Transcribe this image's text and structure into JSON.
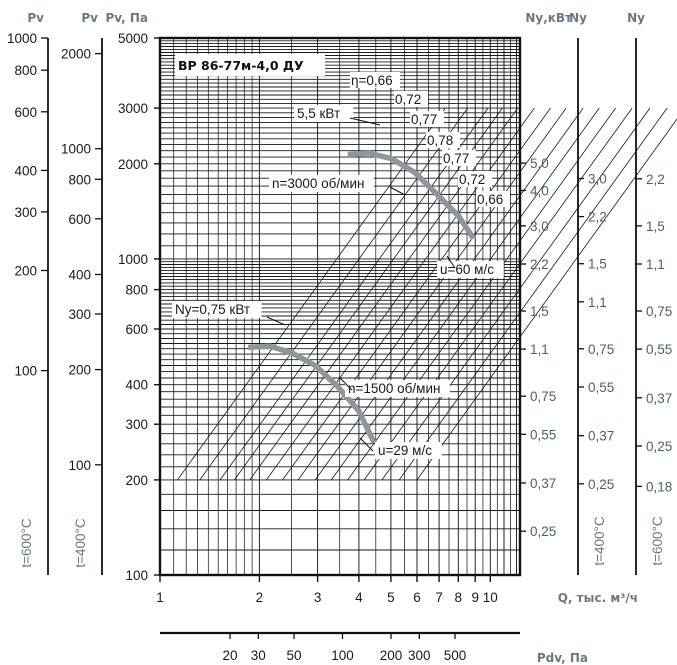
{
  "chart_data": {
    "type": "line",
    "title": "ВР 86-77м-4,0 ДУ",
    "xlabel": "Q, тыс. м³/ч",
    "ylabel": "Pv, Па",
    "x_scale": "log",
    "y_scale": "log",
    "xlim": [
      1,
      12.3
    ],
    "ylim": [
      100,
      5000
    ],
    "x_ticks": [
      "1",
      "2",
      "3",
      "4",
      "5",
      "6",
      "7",
      "8",
      "9",
      "10"
    ],
    "y_ticks": [
      "100",
      "200",
      "300",
      "400",
      "600",
      "800",
      "1000",
      "2000",
      "3000",
      "5000"
    ],
    "dynamic_pressure_axis": {
      "label": "Pdv, Па",
      "ticks": [
        "20",
        "30",
        "50",
        "100",
        "200",
        "300",
        "500"
      ],
      "values": [
        20,
        30,
        50,
        100,
        200,
        300,
        500
      ]
    },
    "left_axes": [
      {
        "label": "Pv",
        "temperature": "t=600°C",
        "ticks": [
          "100",
          "200",
          "300",
          "400",
          "600",
          "800",
          "1000"
        ],
        "values": [
          100,
          200,
          300,
          400,
          600,
          800,
          1000
        ],
        "range": [
          24.3,
          1000
        ]
      },
      {
        "label": "Pv",
        "temperature": "t=400°C",
        "ticks": [
          "100",
          "200",
          "300",
          "400",
          "600",
          "800",
          "1000",
          "2000"
        ],
        "values": [
          100,
          200,
          300,
          400,
          600,
          800,
          1000,
          2000
        ],
        "range": [
          44.8,
          2240
        ]
      }
    ],
    "power_axes": [
      {
        "label": "Nу,кВт",
        "temperature": "",
        "ticks": [
          "0,25",
          "0,37",
          "0,55",
          "0,75",
          "1,1",
          "1,5",
          "2,2",
          "3,0",
          "4,0",
          "5,0"
        ],
        "values": [
          0.25,
          0.37,
          0.55,
          0.75,
          1.1,
          1.5,
          2.2,
          3.0,
          4.0,
          5.0
        ]
      },
      {
        "label": "Nу",
        "temperature": "t=400°C",
        "ticks": [
          "0,25",
          "0,37",
          "0,55",
          "0,75",
          "1,1",
          "1,5",
          "2,2",
          "3,0"
        ],
        "values": [
          0.25,
          0.37,
          0.55,
          0.75,
          1.1,
          1.5,
          2.2,
          3.0
        ]
      },
      {
        "label": "Nу",
        "temperature": "t=600°C",
        "ticks": [
          "0,18",
          "0,25",
          "0,37",
          "0,55",
          "0,75",
          "1,1",
          "1,5",
          "2,2"
        ],
        "values": [
          0.18,
          0.25,
          0.37,
          0.55,
          0.75,
          1.1,
          1.5,
          2.2
        ]
      }
    ],
    "series": [
      {
        "name": "n=3000 об/мин",
        "x": [
          3.7,
          4.3,
          5.0,
          5.9,
          6.9,
          8.0,
          8.9
        ],
        "y": [
          2140,
          2160,
          2080,
          1880,
          1600,
          1370,
          1160
        ]
      },
      {
        "name": "n=1500 об/мин",
        "x": [
          1.85,
          2.15,
          2.5,
          2.95,
          3.45,
          4.0,
          4.45
        ],
        "y": [
          525,
          530,
          505,
          460,
          395,
          330,
          262
        ]
      }
    ],
    "efficiency_labels": [
      "η=0,66",
      "0,72",
      "0,77",
      "0,78",
      "0,77",
      "0,72",
      "0,66"
    ],
    "annotations": [
      "5,5 кВт",
      "n=3000 об/мин",
      "u=60 м/с",
      "Nу=0,75 кВт",
      "n=1500 об/мин",
      "u=29 м/с"
    ]
  }
}
